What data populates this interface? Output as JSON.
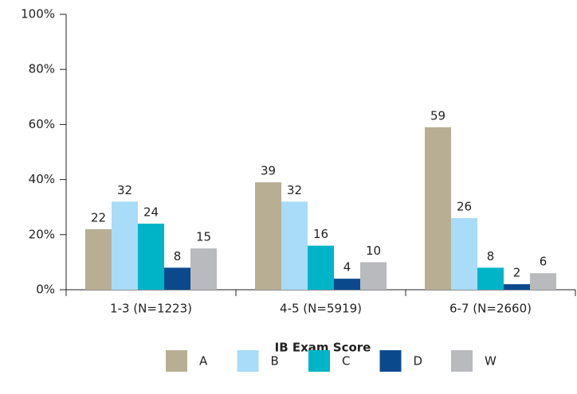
{
  "chart_data": {
    "type": "bar",
    "categories": [
      "1-3 (N=1223)",
      "4-5 (N=5919)",
      "6-7 (N=2660)"
    ],
    "series": [
      {
        "name": "A",
        "color": "#b8ae94",
        "values": [
          22,
          39,
          59
        ]
      },
      {
        "name": "B",
        "color": "#a8dcf8",
        "values": [
          32,
          32,
          26
        ]
      },
      {
        "name": "C",
        "color": "#00b4c8",
        "values": [
          24,
          16,
          8
        ]
      },
      {
        "name": "D",
        "color": "#0a4a8c",
        "values": [
          8,
          4,
          2
        ]
      },
      {
        "name": "W",
        "color": "#b9babd",
        "values": [
          15,
          10,
          6
        ]
      }
    ],
    "xlabel": "IB Exam Score",
    "ylim": [
      0,
      100
    ],
    "yticks": [
      {
        "value": 0,
        "label": "0%"
      },
      {
        "value": 20,
        "label": "20%"
      },
      {
        "value": 40,
        "label": "40%"
      },
      {
        "value": 60,
        "label": "60%"
      },
      {
        "value": 80,
        "label": "80%"
      },
      {
        "value": 100,
        "label": "100%"
      }
    ],
    "legend": "bottom"
  }
}
